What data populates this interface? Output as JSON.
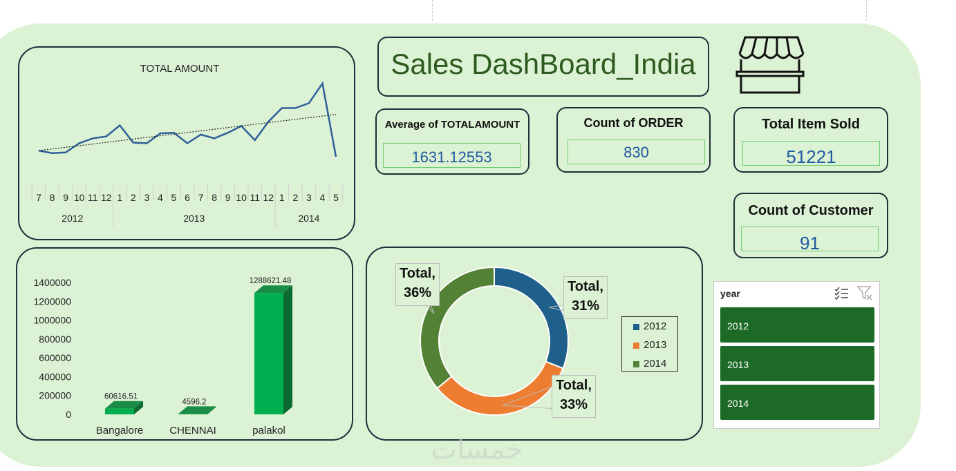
{
  "dashboard": {
    "title": "Sales DashBoard_India"
  },
  "kpis": {
    "avg_amount": {
      "label": "Average of TOTALAMOUNT",
      "value": "1631.12553"
    },
    "count_order": {
      "label": "Count of ORDER",
      "value": "830"
    },
    "total_items": {
      "label": "Total Item Sold",
      "value": "51221"
    },
    "count_customer": {
      "label": "Count of Customer",
      "value": "91"
    }
  },
  "slicer": {
    "header": "year",
    "items": [
      "2012",
      "2013",
      "2014"
    ]
  },
  "colors": {
    "background": "#dcf2d4",
    "line": "#2e5f98",
    "bar": "#00b050",
    "pie_2012": "#1f5f8b",
    "pie_2013": "#ed7d31",
    "pie_2014": "#548235",
    "slicer_item": "#1d6a26"
  },
  "icons": {
    "store": "store-icon",
    "multi_select": "multi-select-icon",
    "clear_filter": "clear-filter-icon"
  },
  "chart_data": [
    {
      "type": "line",
      "title": "TOTAL AMOUNT",
      "x_months": [
        "7",
        "8",
        "9",
        "10",
        "11",
        "12",
        "1",
        "2",
        "3",
        "4",
        "5",
        "6",
        "7",
        "8",
        "9",
        "10",
        "11",
        "12",
        "1",
        "2",
        "3",
        "4",
        "5"
      ],
      "x_years": [
        {
          "label": "2012",
          "span": 6
        },
        {
          "label": "2013",
          "span": 12
        },
        {
          "label": "2014",
          "span": 5
        }
      ],
      "values": [
        29000,
        25000,
        26000,
        41000,
        49000,
        52000,
        70000,
        42000,
        41000,
        57000,
        58000,
        41000,
        55000,
        49000,
        58000,
        69000,
        46000,
        76000,
        98000,
        98000,
        106000,
        138000,
        19000
      ],
      "trendline": "linear",
      "grid": false
    },
    {
      "type": "bar",
      "categories": [
        "Bangalore",
        "CHENNAI",
        "palakol"
      ],
      "values": [
        60616.51,
        4596.2,
        1288621.48
      ],
      "data_labels": [
        "60616.51",
        "4596.2",
        "1288621.48"
      ],
      "ylim": [
        0,
        1400000
      ],
      "yticks": [
        "0",
        "200000",
        "400000",
        "600000",
        "800000",
        "1000000",
        "1200000",
        "1400000"
      ],
      "style": "3d"
    },
    {
      "type": "pie",
      "donut": true,
      "slices": [
        {
          "name": "2012",
          "value": 31,
          "label": "Total, 31%"
        },
        {
          "name": "2013",
          "value": 33,
          "label": "Total, 33%"
        },
        {
          "name": "2014",
          "value": 36,
          "label": "Total, 36%"
        }
      ],
      "legend": "right"
    }
  ]
}
